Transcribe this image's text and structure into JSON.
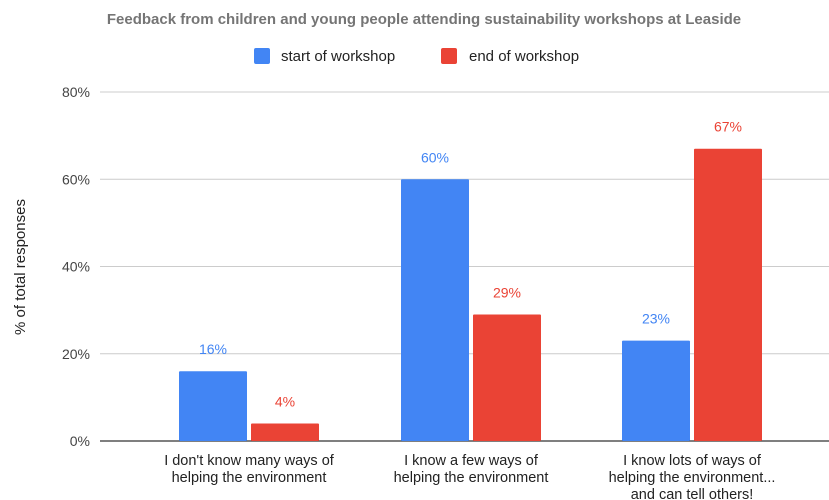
{
  "chart_data": {
    "type": "bar",
    "title": "Feedback from children and young people attending sustainability workshops at Leaside",
    "ylabel": "% of total responses",
    "xlabel": "",
    "ylim": [
      0,
      80
    ],
    "yticks": [
      "0%",
      "20%",
      "40%",
      "60%",
      "80%"
    ],
    "grid": true,
    "legend_position": "top",
    "categories": [
      [
        "I don't know many ways of",
        "helping the environment"
      ],
      [
        "I know a few ways of",
        "helping the environment"
      ],
      [
        "I know lots of ways of",
        "helping the environment...",
        "and can tell others!"
      ]
    ],
    "series": [
      {
        "name": "start of workshop",
        "color": "#4285f4",
        "values": [
          16,
          60,
          23
        ],
        "labels": [
          "16%",
          "60%",
          "23%"
        ]
      },
      {
        "name": "end of workshop",
        "color": "#ea4335",
        "values": [
          4,
          29,
          67
        ],
        "labels": [
          "4%",
          "29%",
          "67%"
        ]
      }
    ]
  }
}
